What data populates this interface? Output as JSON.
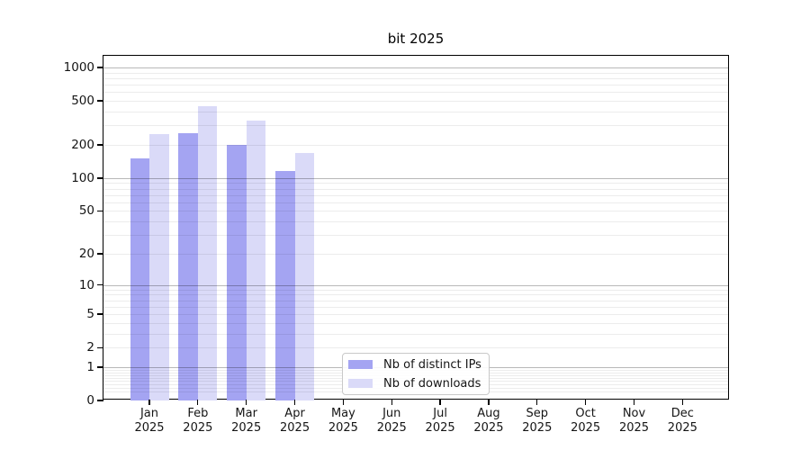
{
  "title": "bit 2025",
  "year_line": "2025",
  "legend": {
    "items": [
      {
        "label": "Nb of distinct IPs",
        "color": "#a4a4f2"
      },
      {
        "label": "Nb of downloads",
        "color": "#dadaf8"
      }
    ]
  },
  "axes": {
    "months": [
      "Jan",
      "Feb",
      "Mar",
      "Apr",
      "May",
      "Jun",
      "Jul",
      "Aug",
      "Sep",
      "Oct",
      "Nov",
      "Dec"
    ],
    "y_tick_labels": [
      "0",
      "1",
      "2",
      "5",
      "10",
      "20",
      "50",
      "100",
      "200",
      "500",
      "1000"
    ]
  },
  "chart_data": {
    "type": "bar",
    "title": "bit 2025",
    "categories": [
      "Jan 2025",
      "Feb 2025",
      "Mar 2025",
      "Apr 2025",
      "May 2025",
      "Jun 2025",
      "Jul 2025",
      "Aug 2025",
      "Sep 2025",
      "Oct 2025",
      "Nov 2025",
      "Dec 2025"
    ],
    "series": [
      {
        "name": "Nb of distinct IPs",
        "color": "#a4a4f2",
        "values": [
          150,
          255,
          200,
          115,
          null,
          null,
          null,
          null,
          null,
          null,
          null,
          null
        ]
      },
      {
        "name": "Nb of downloads",
        "color": "#dadaf8",
        "values": [
          250,
          450,
          335,
          170,
          null,
          null,
          null,
          null,
          null,
          null,
          null,
          null
        ]
      }
    ],
    "y_ticks": [
      0,
      1,
      2,
      5,
      10,
      20,
      50,
      100,
      200,
      500,
      1000
    ],
    "y_major_gridlines": [
      1,
      10,
      100,
      1000
    ],
    "y_scale": "log-like (position = log10(1+value))",
    "ylim": [
      0,
      1100
    ],
    "grid": true,
    "legend_position": "inside axes, lower center-left"
  }
}
